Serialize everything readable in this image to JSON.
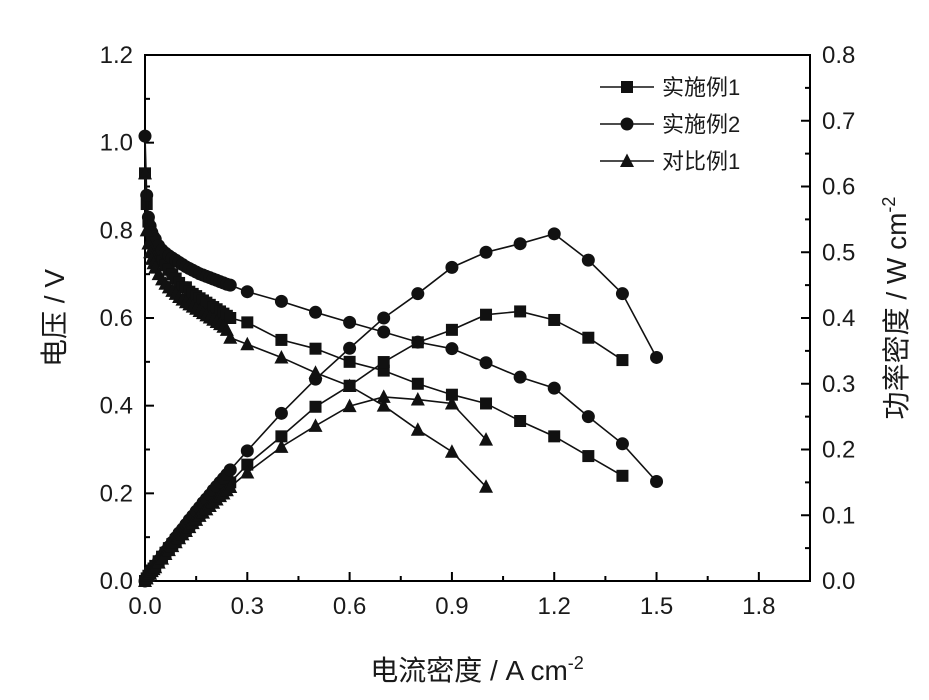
{
  "chart_data": {
    "type": "line",
    "xlabel": "电流密度 / A cm",
    "xlabel_sup": "-2",
    "ylabel_left": "电压 / V",
    "ylabel_right": "功率密度 / W cm",
    "ylabel_right_sup": "-2",
    "xlim": [
      0,
      1.95
    ],
    "ylim_left": [
      0,
      1.2
    ],
    "ylim_right": [
      0,
      0.8
    ],
    "x_ticks": [
      "0.0",
      "0.3",
      "0.6",
      "0.9",
      "1.2",
      "1.5",
      "1.8"
    ],
    "y_left_ticks": [
      "0.0",
      "0.2",
      "0.4",
      "0.6",
      "0.8",
      "1.0",
      "1.2"
    ],
    "y_right_ticks": [
      "0.0",
      "0.1",
      "0.2",
      "0.3",
      "0.4",
      "0.5",
      "0.6",
      "0.7",
      "0.8"
    ],
    "legend_position": "top-right",
    "grid": false,
    "series": [
      {
        "name": "实施例1",
        "marker": "square",
        "voltage": {
          "x": [
            0,
            0.005,
            0.01,
            0.015,
            0.02,
            0.025,
            0.03,
            0.04,
            0.05,
            0.06,
            0.07,
            0.08,
            0.09,
            0.1,
            0.11,
            0.12,
            0.13,
            0.14,
            0.15,
            0.16,
            0.17,
            0.18,
            0.19,
            0.2,
            0.21,
            0.22,
            0.23,
            0.24,
            0.25,
            0.3,
            0.4,
            0.5,
            0.6,
            0.7,
            0.8,
            0.9,
            1.0,
            1.1,
            1.2,
            1.3,
            1.4
          ],
          "y": [
            0.93,
            0.86,
            0.82,
            0.8,
            0.78,
            0.77,
            0.76,
            0.74,
            0.73,
            0.72,
            0.71,
            0.7,
            0.69,
            0.68,
            0.67,
            0.67,
            0.66,
            0.655,
            0.65,
            0.645,
            0.64,
            0.635,
            0.63,
            0.625,
            0.62,
            0.615,
            0.61,
            0.605,
            0.6,
            0.59,
            0.55,
            0.53,
            0.5,
            0.48,
            0.45,
            0.425,
            0.405,
            0.365,
            0.33,
            0.285,
            0.24
          ]
        },
        "power": {
          "x": [
            0,
            0.005,
            0.01,
            0.015,
            0.02,
            0.025,
            0.03,
            0.04,
            0.05,
            0.06,
            0.07,
            0.08,
            0.09,
            0.1,
            0.11,
            0.12,
            0.13,
            0.14,
            0.15,
            0.16,
            0.17,
            0.18,
            0.19,
            0.2,
            0.21,
            0.22,
            0.23,
            0.24,
            0.25,
            0.3,
            0.4,
            0.5,
            0.6,
            0.7,
            0.8,
            0.9,
            1.0,
            1.1,
            1.2,
            1.3,
            1.4
          ],
          "y": [
            0,
            0.004,
            0.008,
            0.012,
            0.016,
            0.019,
            0.023,
            0.03,
            0.037,
            0.043,
            0.05,
            0.056,
            0.062,
            0.068,
            0.074,
            0.08,
            0.086,
            0.092,
            0.098,
            0.103,
            0.109,
            0.114,
            0.12,
            0.125,
            0.13,
            0.135,
            0.14,
            0.145,
            0.15,
            0.177,
            0.22,
            0.265,
            0.297,
            0.333,
            0.363,
            0.382,
            0.405,
            0.41,
            0.397,
            0.37,
            0.336
          ]
        }
      },
      {
        "name": "实施例2",
        "marker": "circle",
        "voltage": {
          "x": [
            0,
            0.005,
            0.01,
            0.015,
            0.02,
            0.025,
            0.03,
            0.04,
            0.05,
            0.06,
            0.07,
            0.08,
            0.09,
            0.1,
            0.11,
            0.12,
            0.13,
            0.14,
            0.15,
            0.16,
            0.17,
            0.18,
            0.19,
            0.2,
            0.21,
            0.22,
            0.23,
            0.24,
            0.25,
            0.3,
            0.4,
            0.5,
            0.6,
            0.7,
            0.8,
            0.9,
            1.0,
            1.1,
            1.2,
            1.3,
            1.4,
            1.5
          ],
          "y": [
            1.015,
            0.88,
            0.83,
            0.81,
            0.795,
            0.785,
            0.78,
            0.765,
            0.755,
            0.748,
            0.742,
            0.737,
            0.732,
            0.727,
            0.722,
            0.717,
            0.713,
            0.709,
            0.705,
            0.701,
            0.698,
            0.695,
            0.692,
            0.689,
            0.686,
            0.683,
            0.68,
            0.677,
            0.675,
            0.66,
            0.638,
            0.613,
            0.59,
            0.568,
            0.545,
            0.53,
            0.498,
            0.465,
            0.44,
            0.375,
            0.313,
            0.227
          ]
        },
        "power": {
          "x": [
            0,
            0.005,
            0.01,
            0.015,
            0.02,
            0.025,
            0.03,
            0.04,
            0.05,
            0.06,
            0.07,
            0.08,
            0.09,
            0.1,
            0.11,
            0.12,
            0.13,
            0.14,
            0.15,
            0.16,
            0.17,
            0.18,
            0.19,
            0.2,
            0.21,
            0.22,
            0.23,
            0.24,
            0.25,
            0.3,
            0.4,
            0.5,
            0.6,
            0.7,
            0.8,
            0.9,
            1.0,
            1.1,
            1.2,
            1.3,
            1.4,
            1.5
          ],
          "y": [
            0,
            0.004,
            0.008,
            0.012,
            0.016,
            0.02,
            0.023,
            0.031,
            0.038,
            0.045,
            0.052,
            0.059,
            0.066,
            0.073,
            0.079,
            0.086,
            0.093,
            0.099,
            0.106,
            0.112,
            0.119,
            0.125,
            0.131,
            0.138,
            0.144,
            0.15,
            0.156,
            0.162,
            0.169,
            0.198,
            0.255,
            0.307,
            0.354,
            0.4,
            0.437,
            0.477,
            0.5,
            0.513,
            0.528,
            0.488,
            0.437,
            0.34
          ]
        }
      },
      {
        "name": "对比例1",
        "marker": "triangle",
        "voltage": {
          "x": [
            0,
            0.005,
            0.01,
            0.015,
            0.02,
            0.025,
            0.03,
            0.04,
            0.05,
            0.06,
            0.07,
            0.08,
            0.09,
            0.1,
            0.11,
            0.12,
            0.13,
            0.14,
            0.15,
            0.16,
            0.17,
            0.18,
            0.19,
            0.2,
            0.21,
            0.22,
            0.23,
            0.24,
            0.25,
            0.3,
            0.4,
            0.5,
            0.6,
            0.7,
            0.8,
            0.9,
            1.0
          ],
          "y": [
            0.93,
            0.8,
            0.77,
            0.75,
            0.735,
            0.725,
            0.715,
            0.7,
            0.688,
            0.678,
            0.67,
            0.662,
            0.655,
            0.648,
            0.642,
            0.636,
            0.631,
            0.626,
            0.621,
            0.616,
            0.611,
            0.606,
            0.601,
            0.596,
            0.591,
            0.586,
            0.58,
            0.573,
            0.555,
            0.54,
            0.51,
            0.475,
            0.445,
            0.4,
            0.345,
            0.295,
            0.215
          ]
        },
        "power": {
          "x": [
            0,
            0.005,
            0.01,
            0.015,
            0.02,
            0.025,
            0.03,
            0.04,
            0.05,
            0.06,
            0.07,
            0.08,
            0.09,
            0.1,
            0.11,
            0.12,
            0.13,
            0.14,
            0.15,
            0.16,
            0.17,
            0.18,
            0.19,
            0.2,
            0.21,
            0.22,
            0.23,
            0.24,
            0.25,
            0.3,
            0.4,
            0.5,
            0.6,
            0.7,
            0.8,
            0.9,
            1.0
          ],
          "y": [
            0,
            0.004,
            0.008,
            0.011,
            0.015,
            0.018,
            0.021,
            0.028,
            0.034,
            0.041,
            0.047,
            0.053,
            0.059,
            0.065,
            0.071,
            0.076,
            0.082,
            0.088,
            0.093,
            0.099,
            0.104,
            0.109,
            0.114,
            0.119,
            0.124,
            0.129,
            0.133,
            0.138,
            0.143,
            0.165,
            0.204,
            0.236,
            0.266,
            0.28,
            0.276,
            0.27,
            0.215
          ]
        }
      }
    ]
  }
}
